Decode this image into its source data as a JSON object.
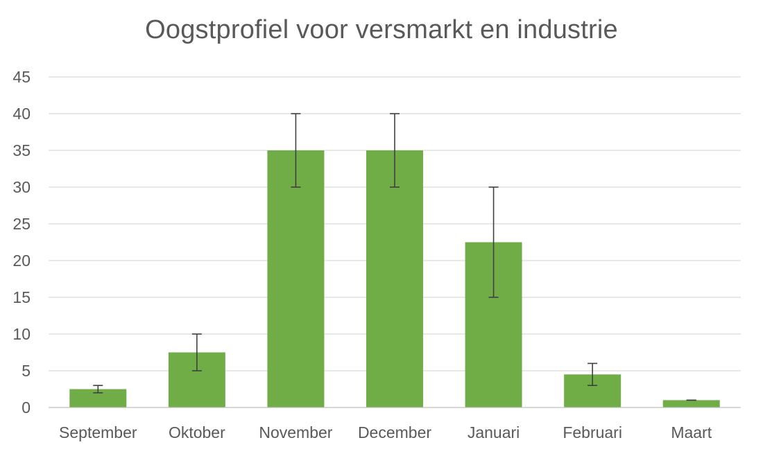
{
  "chart_data": {
    "type": "bar",
    "title": "Oogstprofiel voor versmarkt en industrie",
    "xlabel": "",
    "ylabel": "",
    "categories": [
      "September",
      "Oktober",
      "November",
      "December",
      "Januari",
      "Februari",
      "Maart"
    ],
    "values": [
      2.5,
      7.5,
      35,
      35,
      22.5,
      4.5,
      1
    ],
    "error_low": [
      2,
      5,
      30,
      30,
      15,
      3,
      1
    ],
    "error_high": [
      3,
      10,
      40,
      40,
      30,
      6,
      1
    ],
    "ylim": [
      0,
      45
    ],
    "yticks": [
      "0",
      "5",
      "10",
      "15",
      "20",
      "25",
      "30",
      "35",
      "40",
      "45"
    ],
    "grid": true,
    "legend": "none",
    "colors": {
      "bar": "#70AD47",
      "grid": "#D9D9D9",
      "axis": "#BFBFBF",
      "error": "#404040",
      "text": "#595959"
    }
  }
}
